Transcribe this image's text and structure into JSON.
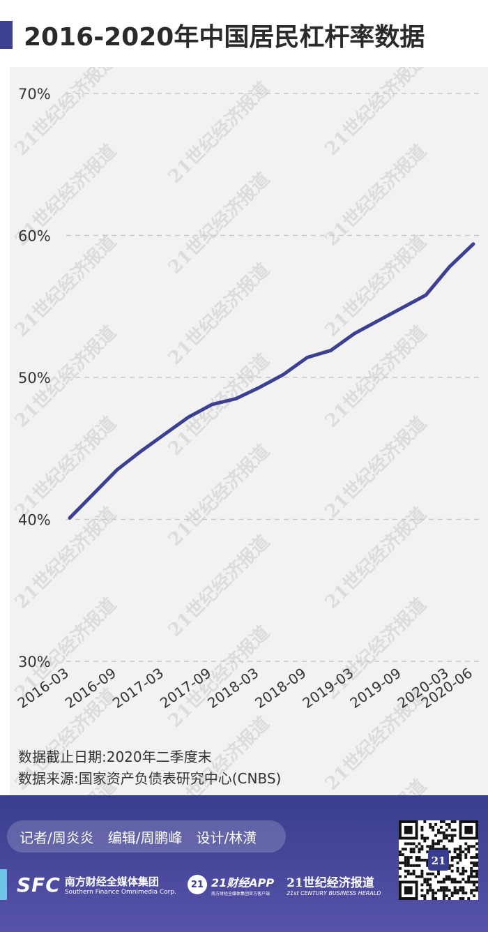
{
  "header": {
    "title": "2016-2020年中国居民杠杆率数据"
  },
  "chart_data": {
    "type": "line",
    "title": "2016-2020年中国居民杠杆率数据",
    "xlabel": "",
    "ylabel": "",
    "ylim": [
      30,
      70
    ],
    "y_ticks": [
      "70%",
      "60%",
      "50%",
      "40%",
      "30%"
    ],
    "y_tick_values": [
      70,
      60,
      50,
      40,
      30
    ],
    "grid": "horizontal dashed",
    "x": [
      "2016-03",
      "2016-06",
      "2016-09",
      "2016-12",
      "2017-03",
      "2017-06",
      "2017-09",
      "2017-12",
      "2018-03",
      "2018-06",
      "2018-09",
      "2018-12",
      "2019-03",
      "2019-06",
      "2019-09",
      "2019-12",
      "2020-03",
      "2020-06"
    ],
    "x_tick_labels": [
      "2016-03",
      "2016-09",
      "2017-03",
      "2017-09",
      "2018-03",
      "2018-09",
      "2019-03",
      "2019-09",
      "2020-03",
      "2020-06"
    ],
    "series": [
      {
        "values": [
          40.1,
          41.8,
          43.5,
          44.8,
          46.0,
          47.2,
          48.1,
          48.5,
          49.3,
          50.2,
          51.4,
          51.9,
          53.1,
          54.0,
          54.9,
          55.8,
          57.8,
          59.4
        ]
      }
    ],
    "color": "#3d3f91"
  },
  "notes": {
    "cutoff": "数据截止日期:2020年二季度末",
    "source": "数据来源:国家资产负债表研究中心(CNBS)"
  },
  "footer": {
    "credits": [
      "记者/周炎炎",
      "编辑/周鹏峰",
      "设计/林潢"
    ],
    "sfc_mark": "SFC",
    "sfc_cn": "南方财经全媒体集团",
    "sfc_en": "Southern Finance Omnimedia Corp.",
    "badge": "21",
    "app_cn": "21财经APP",
    "app_en": "南方财经全媒体集团官方客户端",
    "herald_cn": "21世纪经济报道",
    "herald_en": "21st CENTURY BUSINESS HERALD",
    "qr_badge": "21"
  },
  "watermark": "21世纪经济报道",
  "colors": {
    "brand": "#3d3f91",
    "accent": "#6fc3e6",
    "grid": "#c8c8c8"
  }
}
